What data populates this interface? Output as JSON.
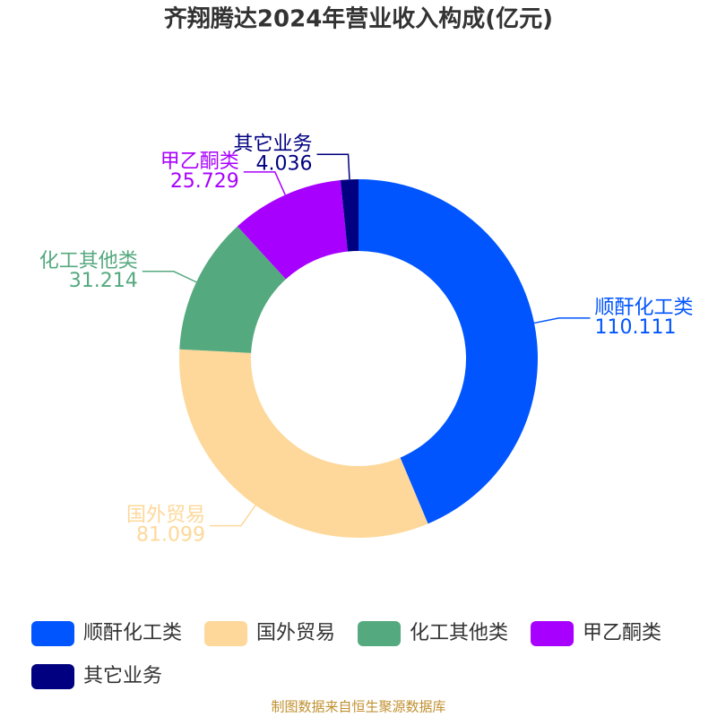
{
  "chart_data": {
    "type": "pie",
    "donut": true,
    "title": "齐翔腾达2024年营业收入构成(亿元)",
    "categories": [
      "顺酐化工类",
      "国外贸易",
      "化工其他类",
      "甲乙酮类",
      "其它业务"
    ],
    "values": [
      110.111,
      81.099,
      31.214,
      25.729,
      4.036
    ],
    "colors": [
      "#0055ff",
      "#fdd89a",
      "#55a97f",
      "#a800ff",
      "#000080"
    ],
    "legend": "bottom",
    "source": "制图数据来自恒生聚源数据库"
  }
}
